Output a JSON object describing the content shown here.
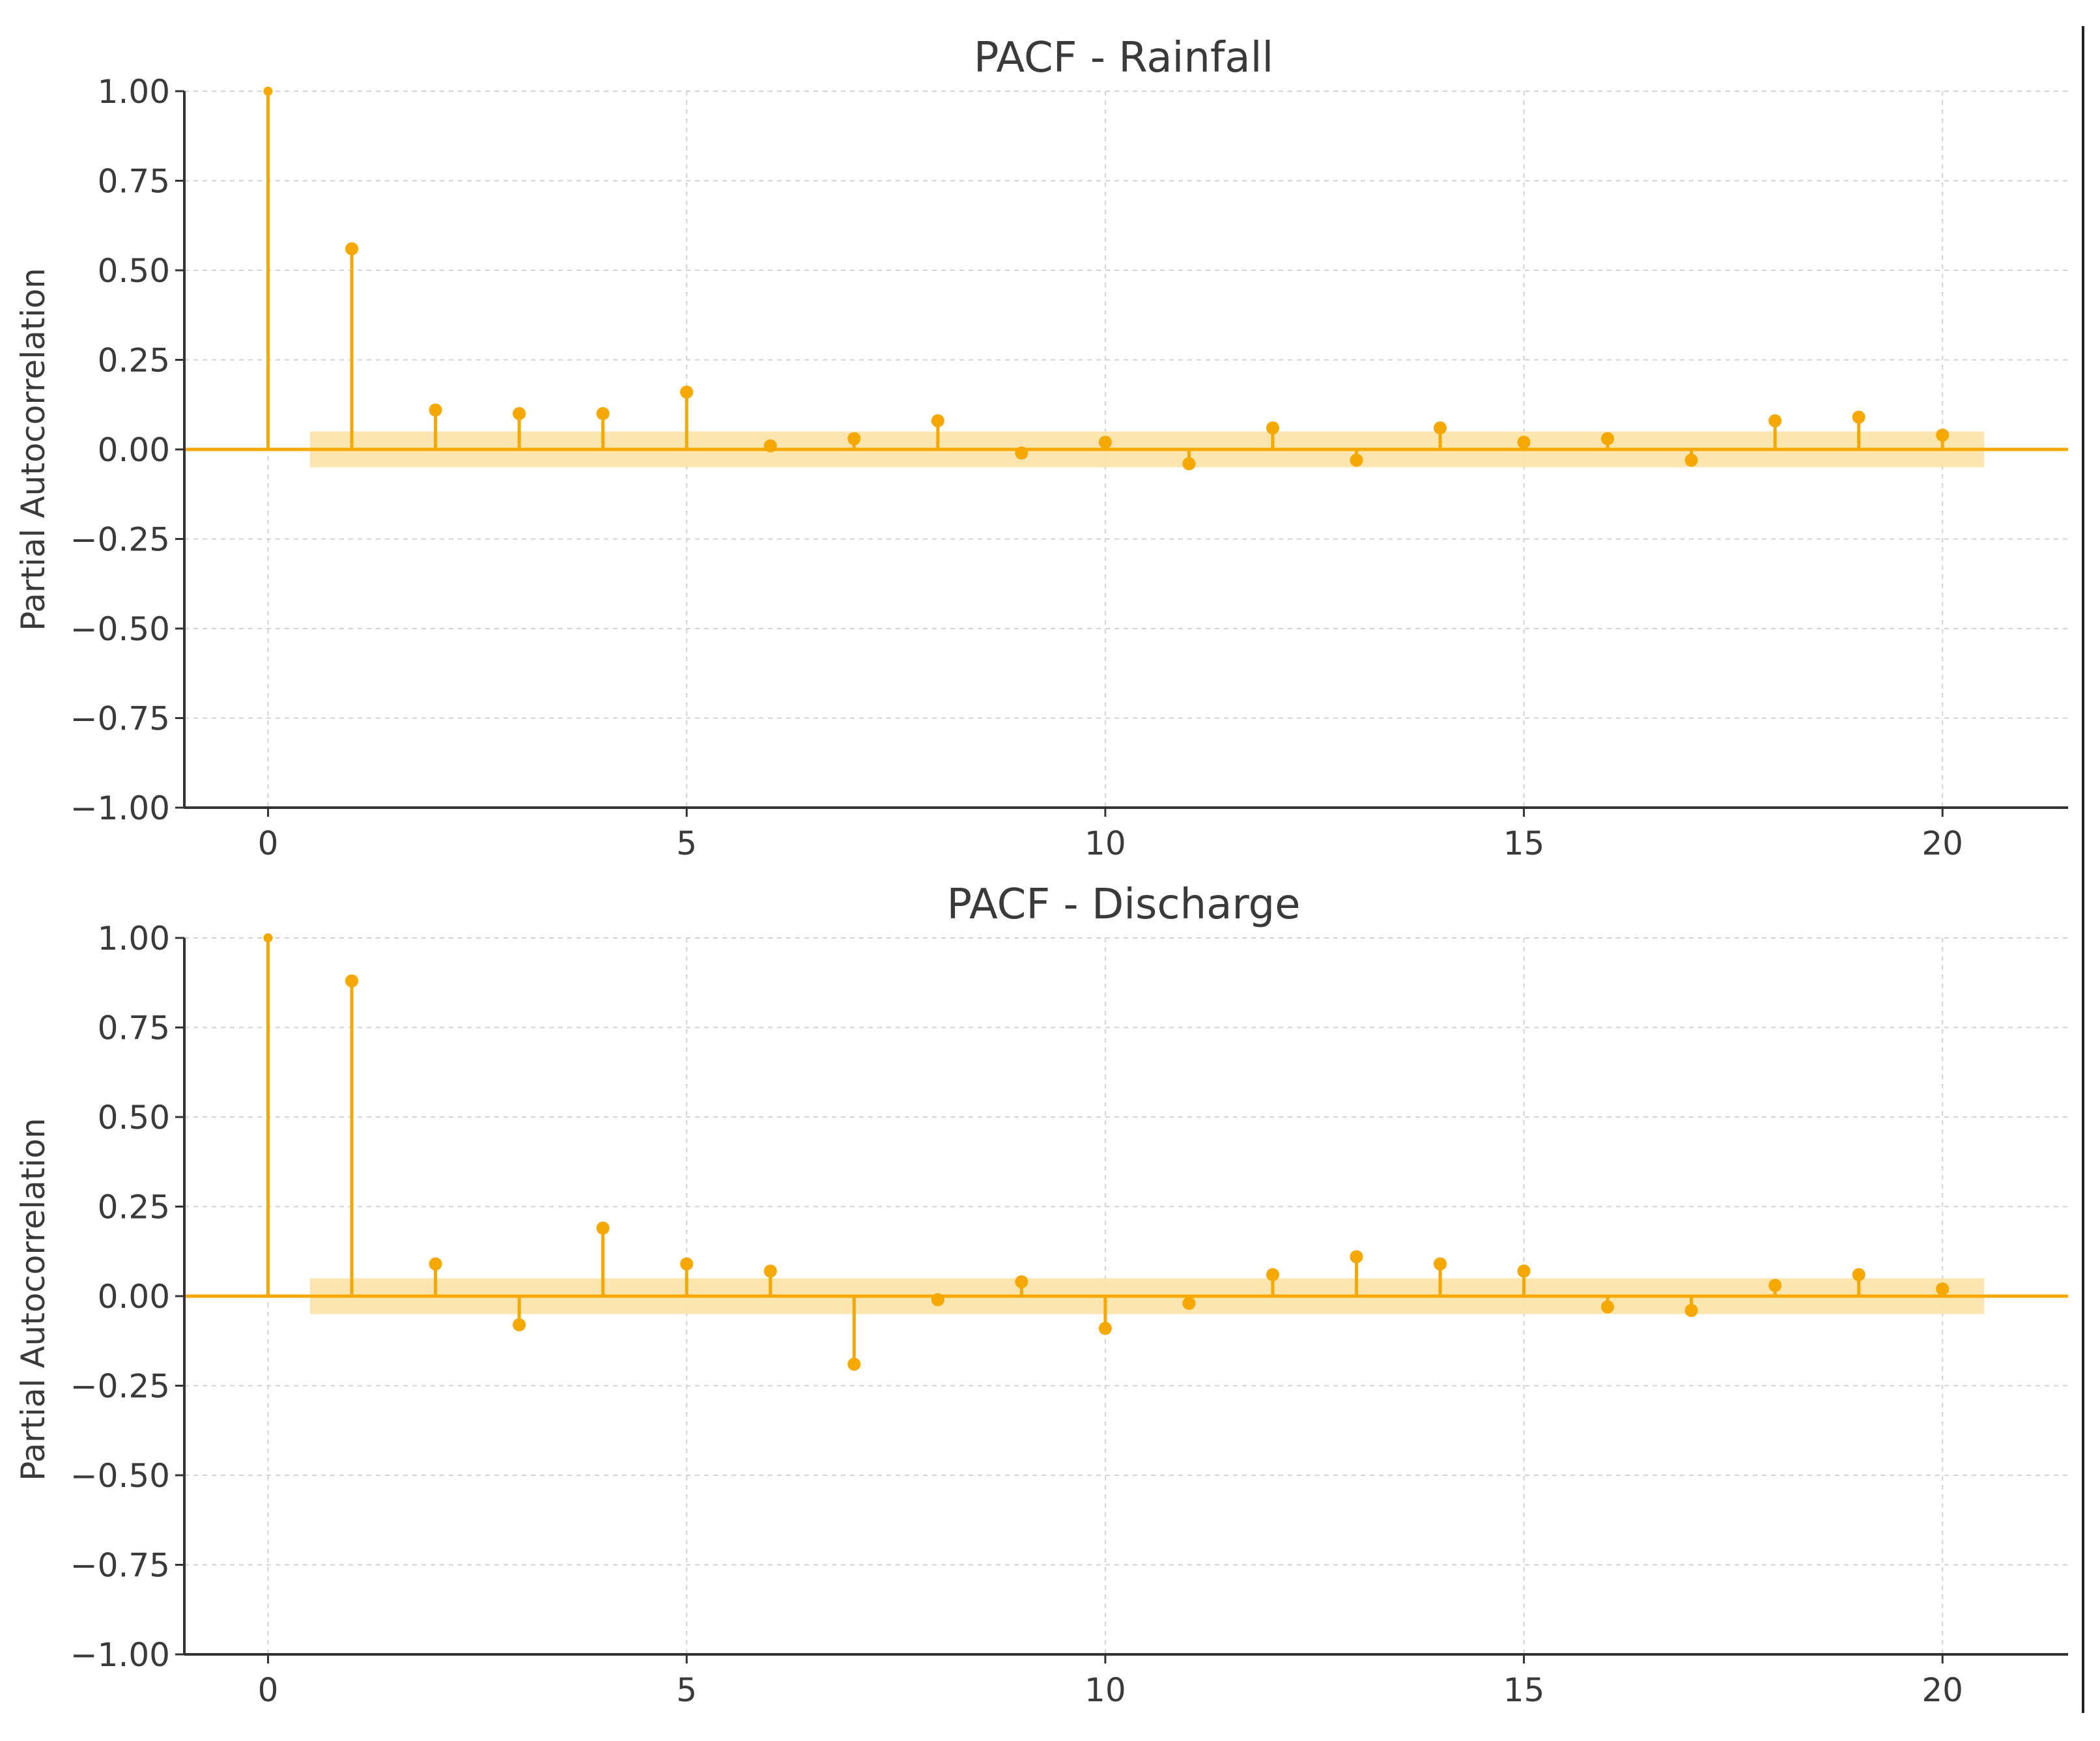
{
  "colors": {
    "stem": "#f5a800",
    "confidence_band": "#fde2a6",
    "zero_line": "#f5a800"
  },
  "chart_data": [
    {
      "type": "stem",
      "title": "PACF - Rainfall",
      "ylabel": "Partial Autocorrelation",
      "xlabel": "",
      "xlim": [
        -1,
        21.5
      ],
      "ylim": [
        -1.0,
        1.0
      ],
      "xticks": [
        0,
        5,
        10,
        15,
        20
      ],
      "xtick_labels": [
        "0",
        "5",
        "10",
        "15",
        "20"
      ],
      "yticks": [
        1.0,
        0.75,
        0.5,
        0.25,
        0.0,
        -0.25,
        -0.5,
        -0.75,
        -1.0
      ],
      "ytick_labels": [
        "1.00",
        "0.75",
        "0.50",
        "0.25",
        "0.00",
        "−0.25",
        "−0.50",
        "−0.75",
        "−1.00"
      ],
      "grid": true,
      "confidence_band": [
        -0.05,
        0.05
      ],
      "x": [
        0,
        1,
        2,
        3,
        4,
        5,
        6,
        7,
        8,
        9,
        10,
        11,
        12,
        13,
        14,
        15,
        16,
        17,
        18,
        19,
        20
      ],
      "values": [
        1.0,
        0.56,
        0.11,
        0.1,
        0.1,
        0.16,
        0.01,
        0.03,
        0.08,
        -0.01,
        0.02,
        -0.04,
        0.06,
        -0.03,
        0.06,
        0.02,
        0.03,
        -0.03,
        0.08,
        0.09,
        0.04
      ]
    },
    {
      "type": "stem",
      "title": "PACF - Discharge",
      "ylabel": "Partial Autocorrelation",
      "xlabel": "",
      "xlim": [
        -1,
        21.5
      ],
      "ylim": [
        -1.0,
        1.0
      ],
      "xticks": [
        0,
        5,
        10,
        15,
        20
      ],
      "xtick_labels": [
        "0",
        "5",
        "10",
        "15",
        "20"
      ],
      "yticks": [
        1.0,
        0.75,
        0.5,
        0.25,
        0.0,
        -0.25,
        -0.5,
        -0.75,
        -1.0
      ],
      "ytick_labels": [
        "1.00",
        "0.75",
        "0.50",
        "0.25",
        "0.00",
        "−0.25",
        "−0.50",
        "−0.75",
        "−1.00"
      ],
      "grid": true,
      "confidence_band": [
        -0.05,
        0.05
      ],
      "x": [
        0,
        1,
        2,
        3,
        4,
        5,
        6,
        7,
        8,
        9,
        10,
        11,
        12,
        13,
        14,
        15,
        16,
        17,
        18,
        19,
        20
      ],
      "values": [
        1.0,
        0.88,
        0.09,
        -0.08,
        0.19,
        0.09,
        0.07,
        -0.19,
        -0.01,
        0.04,
        -0.09,
        -0.02,
        0.06,
        0.11,
        0.09,
        0.07,
        -0.03,
        -0.04,
        0.03,
        0.06,
        0.02
      ]
    }
  ]
}
